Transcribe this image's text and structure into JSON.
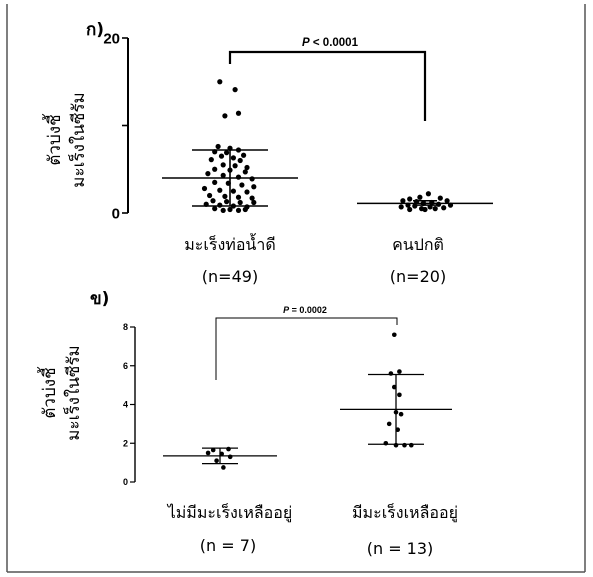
{
  "chart_data": [
    {
      "type": "scatter",
      "panel_label": "ก)",
      "ylabel": [
        "ตัวบ่งชี้",
        "มะเร็งในซีรัม"
      ],
      "ylim": [
        0,
        20
      ],
      "yticks": [
        {
          "value": 0,
          "label": "0"
        },
        {
          "value": 10,
          "label": ""
        },
        {
          "value": 20,
          "label": "20"
        }
      ],
      "categories": [
        "มะเร็งท่อน้ำดี",
        "คนปกติ"
      ],
      "sample_sizes": [
        "(n=49)",
        "(n=20)"
      ],
      "pvalue_symbol": "P",
      "pvalue_text": "< 0.0001",
      "series": [
        {
          "mean": 4.0,
          "sd_low": 0.8,
          "sd_high": 7.2,
          "points": [
            {
              "o": -0.6,
              "v": 15.0
            },
            {
              "o": 0.3,
              "v": 14.1
            },
            {
              "o": 0.5,
              "v": 11.4
            },
            {
              "o": -0.3,
              "v": 11.1
            },
            {
              "o": -0.7,
              "v": 7.6
            },
            {
              "o": 0.0,
              "v": 7.4
            },
            {
              "o": 0.5,
              "v": 7.2
            },
            {
              "o": -0.9,
              "v": 7.0
            },
            {
              "o": -0.2,
              "v": 6.9
            },
            {
              "o": 0.8,
              "v": 6.6
            },
            {
              "o": -0.5,
              "v": 6.5
            },
            {
              "o": 0.2,
              "v": 6.3
            },
            {
              "o": -1.1,
              "v": 6.1
            },
            {
              "o": 0.6,
              "v": 6.0
            },
            {
              "o": -0.4,
              "v": 5.5
            },
            {
              "o": 0.3,
              "v": 5.4
            },
            {
              "o": 1.0,
              "v": 5.2
            },
            {
              "o": -0.9,
              "v": 5.0
            },
            {
              "o": 0.0,
              "v": 4.9
            },
            {
              "o": 0.9,
              "v": 4.7
            },
            {
              "o": -1.3,
              "v": 4.5
            },
            {
              "o": -0.4,
              "v": 4.3
            },
            {
              "o": 0.5,
              "v": 4.1
            },
            {
              "o": 1.3,
              "v": 3.9
            },
            {
              "o": -0.9,
              "v": 3.5
            },
            {
              "o": -0.1,
              "v": 3.4
            },
            {
              "o": 0.7,
              "v": 3.2
            },
            {
              "o": 1.4,
              "v": 3.0
            },
            {
              "o": -1.5,
              "v": 2.8
            },
            {
              "o": -0.6,
              "v": 2.6
            },
            {
              "o": 0.2,
              "v": 2.5
            },
            {
              "o": 1.0,
              "v": 2.4
            },
            {
              "o": -1.2,
              "v": 2.0
            },
            {
              "o": -0.3,
              "v": 1.9
            },
            {
              "o": 0.5,
              "v": 1.8
            },
            {
              "o": 1.3,
              "v": 1.7
            },
            {
              "o": -1.0,
              "v": 1.4
            },
            {
              "o": -0.2,
              "v": 1.3
            },
            {
              "o": 0.6,
              "v": 1.2
            },
            {
              "o": 1.4,
              "v": 1.2
            },
            {
              "o": -1.4,
              "v": 1.0
            },
            {
              "o": -0.6,
              "v": 0.9
            },
            {
              "o": 0.2,
              "v": 0.8
            },
            {
              "o": 1.0,
              "v": 0.7
            },
            {
              "o": -0.9,
              "v": 0.5
            },
            {
              "o": 0.0,
              "v": 0.4
            },
            {
              "o": 0.9,
              "v": 0.4
            },
            {
              "o": -0.4,
              "v": 0.3
            },
            {
              "o": 0.5,
              "v": 0.3
            }
          ]
        },
        {
          "mean": 1.1,
          "sd_low": 0.9,
          "sd_high": 1.4,
          "points": [
            {
              "o": 0.2,
              "v": 2.2
            },
            {
              "o": -0.3,
              "v": 1.8
            },
            {
              "o": 0.9,
              "v": 1.7
            },
            {
              "o": -0.9,
              "v": 1.6
            },
            {
              "o": -1.3,
              "v": 1.4
            },
            {
              "o": 1.3,
              "v": 1.4
            },
            {
              "o": -0.5,
              "v": 1.3
            },
            {
              "o": 0.4,
              "v": 1.2
            },
            {
              "o": -0.1,
              "v": 1.1
            },
            {
              "o": 0.8,
              "v": 1.0
            },
            {
              "o": -1.0,
              "v": 0.9
            },
            {
              "o": 1.5,
              "v": 0.9
            },
            {
              "o": -0.6,
              "v": 0.8
            },
            {
              "o": 0.3,
              "v": 0.7
            },
            {
              "o": -1.4,
              "v": 0.7
            },
            {
              "o": 1.1,
              "v": 0.6
            },
            {
              "o": -0.2,
              "v": 0.5
            },
            {
              "o": 0.6,
              "v": 0.5
            },
            {
              "o": -0.9,
              "v": 0.4
            },
            {
              "o": 0.0,
              "v": 0.4
            }
          ]
        }
      ]
    },
    {
      "type": "scatter",
      "panel_label": "ข)",
      "ylabel": [
        "ตัวบ่งชี้",
        "มะเร็งในซีรัม"
      ],
      "ylim": [
        0,
        8
      ],
      "yticks": [
        {
          "value": 0,
          "label": "0"
        },
        {
          "value": 2,
          "label": "2"
        },
        {
          "value": 4,
          "label": "4"
        },
        {
          "value": 6,
          "label": "6"
        },
        {
          "value": 8,
          "label": "8"
        }
      ],
      "categories": [
        "ไม่มีมะเร็งเหลืออยู่",
        "มีมะเร็งเหลืออยู่"
      ],
      "sample_sizes": [
        "(n = 7)",
        "(n = 13)"
      ],
      "pvalue_symbol": "P",
      "pvalue_text": "= 0.0002",
      "series": [
        {
          "mean": 1.35,
          "sd_low": 0.95,
          "sd_high": 1.75,
          "points": [
            {
              "o": -0.4,
              "v": 1.65
            },
            {
              "o": 0.5,
              "v": 1.7
            },
            {
              "o": -0.7,
              "v": 1.5
            },
            {
              "o": 0.1,
              "v": 1.45
            },
            {
              "o": 0.6,
              "v": 1.3
            },
            {
              "o": -0.2,
              "v": 1.1
            },
            {
              "o": 0.2,
              "v": 0.75
            }
          ]
        },
        {
          "mean": 3.75,
          "sd_low": 1.95,
          "sd_high": 5.55,
          "points": [
            {
              "o": -0.1,
              "v": 7.6
            },
            {
              "o": 0.2,
              "v": 5.7
            },
            {
              "o": -0.3,
              "v": 5.6
            },
            {
              "o": -0.1,
              "v": 4.9
            },
            {
              "o": 0.2,
              "v": 4.5
            },
            {
              "o": 0.0,
              "v": 3.6
            },
            {
              "o": 0.3,
              "v": 3.5
            },
            {
              "o": -0.4,
              "v": 3.0
            },
            {
              "o": 0.1,
              "v": 2.7
            },
            {
              "o": -0.6,
              "v": 2.0
            },
            {
              "o": 0.0,
              "v": 1.9
            },
            {
              "o": 0.5,
              "v": 1.9
            },
            {
              "o": 0.9,
              "v": 1.9
            }
          ]
        }
      ]
    }
  ]
}
